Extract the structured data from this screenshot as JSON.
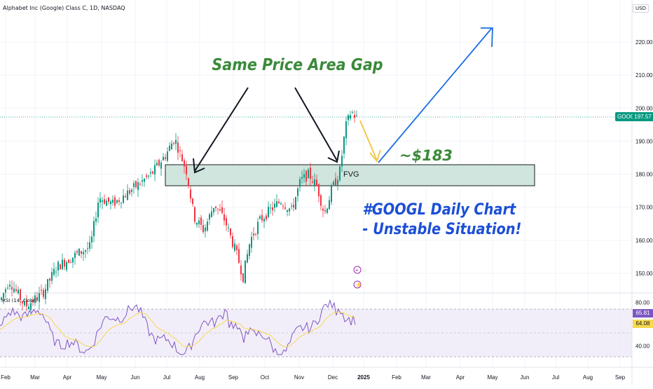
{
  "header": {
    "title": "Alphabet Inc (Google) Class C, 1D, NASDAQ",
    "currency": "USD"
  },
  "price_axis": {
    "ticks": [
      "220.00",
      "210.00",
      "200.00",
      "190.00",
      "180.00",
      "170.00",
      "160.00",
      "150.00"
    ]
  },
  "rsi_axis": {
    "ticks": [
      "80.00",
      "40.00"
    ]
  },
  "time_axis": {
    "labels": [
      "Feb",
      "Mar",
      "Apr",
      "May",
      "Jun",
      "Jul",
      "Aug",
      "Sep",
      "Oct",
      "Nov",
      "Dec",
      "2025",
      "Feb",
      "Mar",
      "Apr",
      "May",
      "Jun",
      "Jul",
      "Aug",
      "Sep"
    ]
  },
  "last_price": {
    "symbol": "GOOG",
    "value": "197.57"
  },
  "rsi": {
    "title": "RSI (14, close)",
    "value": "65.81",
    "ma_value": "64.08"
  },
  "annotations": {
    "gap_title": "Same Price Area Gap",
    "target": "~$183",
    "fvg": "FVG",
    "chart_line1": "#GOOGL Daily Chart",
    "chart_line2": "- Unstable Situation!"
  },
  "colors": {
    "up": "#089981",
    "down": "#f23645",
    "fvg_fill": "#cfe5dd",
    "annotation_green": "#3a8a3a",
    "annotation_blue": "#1c4fd6",
    "rsi_line": "#7e57c2",
    "rsi_ma": "#f6d94f"
  },
  "chart_data": {
    "type": "candlestick",
    "ylim": [
      145,
      226
    ],
    "fvg_zone": [
      176.6,
      183.4
    ],
    "closes": [
      {
        "month": "Feb",
        "close": 142
      },
      {
        "month": "Mar",
        "close": 142
      },
      {
        "month": "Apr",
        "close": 156
      },
      {
        "month": "May",
        "close": 172
      },
      {
        "month": "Jun",
        "close": 178
      },
      {
        "month": "Jul",
        "close": 186
      },
      {
        "month": "Aug",
        "close": 166
      },
      {
        "month": "Sep",
        "close": 159
      },
      {
        "month": "Oct",
        "close": 166
      },
      {
        "month": "Nov",
        "close": 176
      },
      {
        "month": "Dec",
        "close": 173
      },
      {
        "month": "Dec-late",
        "close": 197.57
      }
    ],
    "rsi_ylim": [
      30,
      85
    ],
    "rsi_levels": [
      70,
      50,
      30
    ]
  }
}
